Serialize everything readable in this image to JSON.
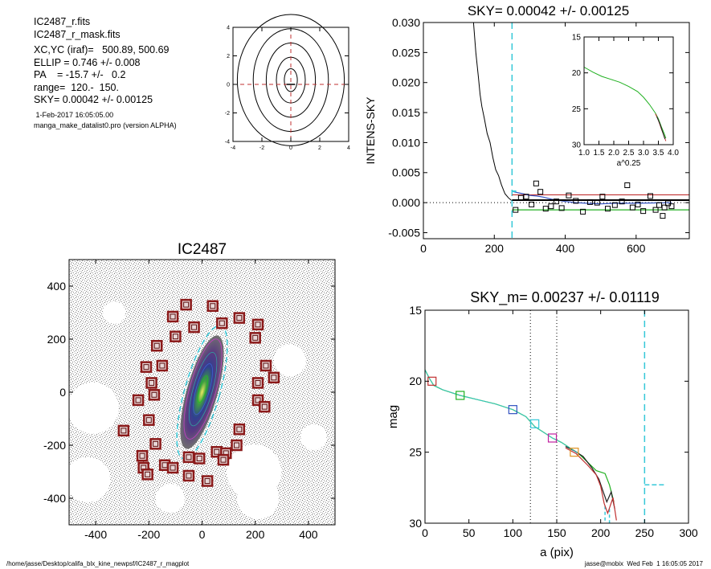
{
  "header": {
    "file1": "IC2487_r.fits",
    "file2": "IC2487_r_mask.fits",
    "xcyc": "XC,YC (iraf)=   500.89, 500.69",
    "ellip": "ELLIP = 0.746 +/- 0.008",
    "pa": "PA    = -15.7 +/-   0.2",
    "range": "range=  120.-  150.",
    "sky": "SKY= 0.00042 +/- 0.00125",
    "date": " 1-Feb-2017 16:05:05.00",
    "program": "manga_make_datalist0.pro (version ALPHA)"
  },
  "footer": {
    "path": "/home/jasse/Desktop/califa_blx_kine_newpsf/IC2487_r_magplot",
    "user": "jasse@mobix  Wed Feb  1 16:05:05 2017"
  },
  "colors": {
    "dashed_cyan": "#35c8d8",
    "red": "#c03030",
    "green": "#20b020",
    "blue": "#3050c0",
    "magenta": "#c020a0",
    "orange": "#e09020",
    "box": "#8b1a1a"
  },
  "chart_data": [
    {
      "id": "contour",
      "type": "contour",
      "title": "",
      "x_ticks": [
        "-4",
        "-2",
        "0",
        "2",
        "4"
      ],
      "y_ticks": [
        "-4",
        "-2",
        "0",
        "2",
        "4"
      ],
      "xlim": [
        -4,
        4
      ],
      "ylim": [
        -4,
        4
      ],
      "crosshair": [
        0,
        0
      ],
      "levels": [
        {
          "rx": 0.45,
          "ry": 0.8
        },
        {
          "rx": 1.0,
          "ry": 1.6
        },
        {
          "rx": 1.7,
          "ry": 2.6
        },
        {
          "rx": 2.6,
          "ry": 3.6
        },
        {
          "rx": 3.7,
          "ry": 4.6
        }
      ]
    },
    {
      "id": "sky",
      "type": "line",
      "title": "SKY= 0.00042 +/- 0.00125",
      "ylabel": "INTENS-SKY",
      "xlim": [
        0,
        750
      ],
      "ylim": [
        -0.006,
        0.03
      ],
      "x_ticks": [
        "0",
        "200",
        "400",
        "600"
      ],
      "y_ticks": [
        "-0.005",
        "0.000",
        "0.005",
        "0.010",
        "0.015",
        "0.020",
        "0.025",
        "0.030"
      ],
      "profile": [
        [
          140,
          0.031
        ],
        [
          148,
          0.025
        ],
        [
          155,
          0.021
        ],
        [
          160,
          0.018
        ],
        [
          165,
          0.016
        ],
        [
          172,
          0.014
        ],
        [
          180,
          0.0115
        ],
        [
          188,
          0.01
        ],
        [
          196,
          0.0075
        ],
        [
          204,
          0.0055
        ],
        [
          212,
          0.0045
        ],
        [
          220,
          0.003
        ],
        [
          230,
          0.0015
        ],
        [
          240,
          0.0008
        ],
        [
          250,
          0.0003
        ]
      ],
      "zero_line": 0.0,
      "sky_value": 0.00042,
      "upper": 0.0013,
      "lower": -0.0012,
      "range_marker": 250,
      "points": [
        [
          260,
          -0.0012
        ],
        [
          275,
          0.0008
        ],
        [
          290,
          0.001
        ],
        [
          305,
          -0.0003
        ],
        [
          318,
          0.0032
        ],
        [
          330,
          0.0018
        ],
        [
          345,
          -0.001
        ],
        [
          360,
          -0.0006
        ],
        [
          375,
          0.0002
        ],
        [
          390,
          -0.0009
        ],
        [
          410,
          0.0012
        ],
        [
          430,
          0.0003
        ],
        [
          450,
          -0.0015
        ],
        [
          470,
          0.0001
        ],
        [
          490,
          0.0
        ],
        [
          505,
          0.001
        ],
        [
          520,
          -0.001
        ],
        [
          540,
          -0.0004
        ],
        [
          560,
          0.0002
        ],
        [
          575,
          0.0029
        ],
        [
          590,
          -0.0008
        ],
        [
          605,
          -0.0003
        ],
        [
          620,
          -0.0014
        ],
        [
          640,
          0.0011
        ],
        [
          655,
          -0.0012
        ],
        [
          665,
          -0.0004
        ],
        [
          675,
          -0.0022
        ],
        [
          680,
          -0.0008
        ],
        [
          690,
          -0.0001
        ],
        [
          700,
          -0.0006
        ]
      ],
      "blue_line": [
        [
          255,
          0.0018
        ],
        [
          280,
          0.0015
        ],
        [
          300,
          0.0012
        ],
        [
          320,
          0.0011
        ],
        [
          340,
          0.0009
        ],
        [
          360,
          0.0006
        ],
        [
          380,
          0.0004
        ],
        [
          400,
          0.0002
        ],
        [
          430,
          0.0
        ],
        [
          460,
          -0.0001
        ],
        [
          500,
          -0.0002
        ],
        [
          540,
          -0.0001
        ],
        [
          600,
          -0.0001
        ],
        [
          700,
          0.0
        ]
      ]
    },
    {
      "id": "inset",
      "type": "line",
      "xlabel": "a^0.25",
      "xlim": [
        1.0,
        4.0
      ],
      "ylim": [
        15,
        30
      ],
      "x_ticks": [
        "1.0",
        "1.5",
        "2.0",
        "2.5",
        "3.0",
        "3.5",
        "4.0"
      ],
      "y_ticks": [
        "15",
        "20",
        "25",
        "30"
      ],
      "series": [
        {
          "color": "#20b020",
          "points": [
            [
              1.0,
              19.2
            ],
            [
              1.3,
              19.9
            ],
            [
              1.6,
              20.5
            ],
            [
              1.9,
              20.9
            ],
            [
              2.2,
              21.3
            ],
            [
              2.5,
              21.9
            ],
            [
              2.8,
              22.6
            ],
            [
              3.0,
              23.4
            ],
            [
              3.2,
              24.4
            ],
            [
              3.4,
              25.6
            ],
            [
              3.5,
              26.4
            ],
            [
              3.6,
              27.5
            ],
            [
              3.7,
              28.5
            ],
            [
              3.75,
              29.1
            ]
          ]
        },
        {
          "color": "#c03030",
          "points": [
            [
              3.4,
              25.7
            ],
            [
              3.5,
              26.6
            ],
            [
              3.6,
              27.8
            ],
            [
              3.7,
              28.9
            ],
            [
              3.75,
              29.5
            ]
          ]
        },
        {
          "color": "#202020",
          "points": [
            [
              3.45,
              26.1
            ],
            [
              3.55,
              27.1
            ],
            [
              3.65,
              28.3
            ],
            [
              3.72,
              29.2
            ]
          ]
        }
      ]
    },
    {
      "id": "image",
      "type": "image",
      "title": "IC2487",
      "xlim": [
        -500,
        500
      ],
      "ylim": [
        -500,
        500
      ],
      "x_ticks": [
        "-400",
        "-200",
        "0",
        "200",
        "400"
      ],
      "y_ticks": [
        "-400",
        "-200",
        "0",
        "200",
        "400"
      ],
      "ellipse": {
        "semi_major": 260,
        "axis_ratio": 0.254,
        "pa_deg": -15.7
      },
      "boxes": [
        [
          -60,
          330
        ],
        [
          40,
          325
        ],
        [
          -110,
          285
        ],
        [
          140,
          280
        ],
        [
          75,
          260
        ],
        [
          210,
          255
        ],
        [
          -30,
          245
        ],
        [
          -100,
          210
        ],
        [
          200,
          205
        ],
        [
          -170,
          175
        ],
        [
          -210,
          95
        ],
        [
          -150,
          100
        ],
        [
          240,
          100
        ],
        [
          -190,
          35
        ],
        [
          210,
          35
        ],
        [
          270,
          55
        ],
        [
          -180,
          -10
        ],
        [
          -240,
          -30
        ],
        [
          210,
          -30
        ],
        [
          235,
          -55
        ],
        [
          -200,
          -105
        ],
        [
          -295,
          -145
        ],
        [
          140,
          -140
        ],
        [
          -175,
          -195
        ],
        [
          130,
          -200
        ],
        [
          55,
          -225
        ],
        [
          90,
          -230
        ],
        [
          -225,
          -240
        ],
        [
          -50,
          -245
        ],
        [
          -140,
          -275
        ],
        [
          -220,
          -285
        ],
        [
          -110,
          -285
        ],
        [
          -205,
          -310
        ],
        [
          -50,
          -315
        ],
        [
          -10,
          -250
        ],
        [
          80,
          -255
        ],
        [
          20,
          -335
        ]
      ]
    },
    {
      "id": "mag",
      "type": "line",
      "title": "SKY_m=  0.00237 +/- 0.01119",
      "xlabel": "a (pix)",
      "ylabel": "mag",
      "xlim": [
        0,
        300
      ],
      "ylim": [
        15,
        30
      ],
      "x_ticks": [
        "0",
        "50",
        "100",
        "150",
        "200",
        "250",
        "300"
      ],
      "y_ticks": [
        "15",
        "20",
        "25",
        "30"
      ],
      "vlines_dotted": [
        120,
        150
      ],
      "vline_dashed": 250,
      "sky_dash": 27.3,
      "series": [
        {
          "color": "#20b020",
          "points": [
            [
              0,
              19.2
            ],
            [
              5,
              19.8
            ],
            [
              10,
              20.3
            ],
            [
              20,
              20.6
            ],
            [
              40,
              21.0
            ],
            [
              60,
              21.3
            ],
            [
              80,
              21.6
            ],
            [
              100,
              22.0
            ],
            [
              115,
              22.5
            ],
            [
              125,
              23.2
            ],
            [
              135,
              23.6
            ],
            [
              145,
              24.0
            ],
            [
              155,
              24.3
            ],
            [
              165,
              24.7
            ],
            [
              175,
              25.1
            ],
            [
              185,
              25.7
            ],
            [
              195,
              26.3
            ],
            [
              205,
              26.5
            ],
            [
              210,
              27.3
            ],
            [
              215,
              28.5
            ]
          ]
        },
        {
          "color": "#202020",
          "points": [
            [
              160,
              24.6
            ],
            [
              170,
              24.9
            ],
            [
              180,
              25.3
            ],
            [
              190,
              26.1
            ],
            [
              198,
              26.9
            ],
            [
              203,
              27.8
            ],
            [
              207,
              28.5
            ],
            [
              212,
              27.8
            ],
            [
              216,
              29.0
            ]
          ]
        },
        {
          "color": "#c03030",
          "points": [
            [
              160,
              24.7
            ],
            [
              172,
              25.1
            ],
            [
              185,
              25.9
            ],
            [
              195,
              26.6
            ],
            [
              200,
              27.4
            ],
            [
              204,
              28.6
            ],
            [
              208,
              29.3
            ],
            [
              214,
              28.2
            ],
            [
              218,
              29.8
            ]
          ]
        }
      ],
      "boxes": [
        [
          8,
          20.0,
          "#c03030"
        ],
        [
          40,
          21.0,
          "#20b020"
        ],
        [
          100,
          22.0,
          "#3050c0"
        ],
        [
          125,
          23.0,
          "#35c8d8"
        ],
        [
          145,
          24.0,
          "#c020a0"
        ],
        [
          170,
          25.0,
          "#e09020"
        ]
      ],
      "dash_cyan_segments": [
        [
          [
            205,
            28.8
          ],
          [
            205,
            30.0
          ]
        ],
        [
          [
            210,
            29.0
          ],
          [
            210,
            30.0
          ]
        ]
      ]
    }
  ]
}
